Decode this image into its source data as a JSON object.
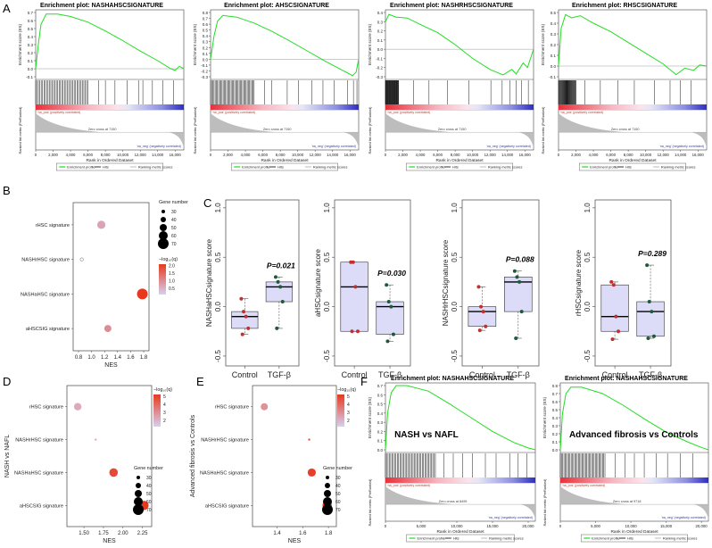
{
  "colors": {
    "gsea_line": "#22dd22",
    "hits": "#000000",
    "ranked_fill": "#bdbdbd",
    "rank_hi": "#e8313a",
    "rank_lo": "#3838c8",
    "dot_hi": "#e8391f",
    "dot_lo": "#d6d0f2",
    "box_fill": "#dcdcf8",
    "control_dot": "#c03030",
    "tgf_dot": "#1e5a3a"
  },
  "panel_letters": [
    "A",
    "B",
    "C",
    "D",
    "E",
    "F"
  ],
  "gsea_common": {
    "y_label_top": "Enrichment score (ES)",
    "y_label_bottom": "Ranked list metric (PreRanked)",
    "x_label": "Rank in Ordered Dataset",
    "pos_label": "'na_pos' (positively correlated)",
    "neg_label": "'na_neg' (negatively correlated)",
    "legend": [
      "Enrichment profile",
      "Hits",
      "Ranking metric scores"
    ]
  },
  "chart_data": [
    {
      "panel": "A1",
      "type": "line",
      "title": "Enrichment plot: NASHAHSCSIGNATURE",
      "x_ticks": [
        "0",
        "2,000",
        "4,000",
        "6,000",
        "8,000",
        "10,000",
        "12,000",
        "14,000",
        "16,000"
      ],
      "x_max": 17000,
      "ylim": [
        -0.1,
        0.7
      ],
      "y_ticks": [
        "0.7",
        "0.6",
        "0.5",
        "0.4",
        "0.3",
        "0.2",
        "0.1",
        "0.0",
        "-0.1"
      ],
      "zero_cross": "Zero cross at 7150",
      "es_curve": [
        [
          0,
          0
        ],
        [
          300,
          0.3
        ],
        [
          600,
          0.55
        ],
        [
          1200,
          0.68
        ],
        [
          2500,
          0.68
        ],
        [
          4000,
          0.65
        ],
        [
          6000,
          0.58
        ],
        [
          8000,
          0.47
        ],
        [
          10000,
          0.35
        ],
        [
          12000,
          0.22
        ],
        [
          14000,
          0.1
        ],
        [
          15500,
          0.0
        ],
        [
          16000,
          -0.02
        ],
        [
          16500,
          0.03
        ],
        [
          17000,
          0.0
        ]
      ],
      "hits_dense": [
        0,
        6000
      ],
      "hits_sparse": [
        7200,
        8000,
        9100,
        10500,
        11800,
        12300,
        13400,
        14600,
        15800
      ]
    },
    {
      "panel": "A2",
      "type": "line",
      "title": "Enrichment plot: AHSCSIGNATURE",
      "x_ticks": [
        "0",
        "2,000",
        "4,000",
        "6,000",
        "8,000",
        "10,000",
        "12,000",
        "14,000",
        "16,000"
      ],
      "x_max": 17000,
      "ylim": [
        -0.3,
        0.8
      ],
      "y_ticks": [
        "0.8",
        "0.7",
        "0.6",
        "0.5",
        "0.4",
        "0.3",
        "0.2",
        "0.1",
        "0.0",
        "-0.1",
        "-0.2",
        "-0.3"
      ],
      "zero_cross": "Zero cross at 7150",
      "es_curve": [
        [
          0,
          0
        ],
        [
          400,
          0.4
        ],
        [
          800,
          0.65
        ],
        [
          1400,
          0.75
        ],
        [
          3000,
          0.72
        ],
        [
          5000,
          0.62
        ],
        [
          7000,
          0.48
        ],
        [
          9000,
          0.32
        ],
        [
          11000,
          0.15
        ],
        [
          13000,
          -0.02
        ],
        [
          15000,
          -0.18
        ],
        [
          16300,
          -0.28
        ],
        [
          16700,
          -0.22
        ],
        [
          17000,
          0.0
        ]
      ],
      "hits_dense": [
        0,
        5000
      ],
      "hits_sparse": [
        6200,
        7000,
        8800,
        10100,
        11600,
        12900,
        14200,
        15700,
        16400,
        16800
      ]
    },
    {
      "panel": "A3",
      "type": "line",
      "title": "Enrichment plot: NASHRHSCSIGNATURE",
      "x_ticks": [
        "0",
        "2,000",
        "4,000",
        "6,000",
        "8,000",
        "10,000",
        "12,000",
        "14,000",
        "16,000"
      ],
      "x_max": 17000,
      "ylim": [
        -0.3,
        0.4
      ],
      "y_ticks": [
        "0.4",
        "0.3",
        "0.2",
        "0.1",
        "0.0",
        "-0.1",
        "-0.2",
        "-0.3"
      ],
      "zero_cross": "Zero cross at 7150",
      "es_curve": [
        [
          0,
          0.3
        ],
        [
          400,
          0.38
        ],
        [
          1200,
          0.35
        ],
        [
          2500,
          0.34
        ],
        [
          4000,
          0.27
        ],
        [
          6000,
          0.18
        ],
        [
          8000,
          0.05
        ],
        [
          10000,
          -0.1
        ],
        [
          12000,
          -0.22
        ],
        [
          13500,
          -0.28
        ],
        [
          14500,
          -0.22
        ],
        [
          15000,
          -0.27
        ],
        [
          15800,
          -0.15
        ],
        [
          16300,
          -0.2
        ],
        [
          17000,
          0.0
        ]
      ],
      "hits_dense": [
        0,
        1500
      ],
      "hits_sparse": [
        3200,
        5000,
        7100,
        9600,
        12100,
        13400,
        14300,
        15000,
        15600,
        16400
      ]
    },
    {
      "panel": "A4",
      "type": "line",
      "title": "Enrichment plot: RHSCSIGNATURE",
      "x_ticks": [
        "0",
        "2,000",
        "4,000",
        "6,000",
        "8,000",
        "10,000",
        "12,000",
        "14,000",
        "16,000"
      ],
      "x_max": 17000,
      "ylim": [
        -0.1,
        0.5
      ],
      "y_ticks": [
        "0.5",
        "0.4",
        "0.3",
        "0.2",
        "0.1",
        "0.0",
        "-0.1"
      ],
      "zero_cross": "Zero cross at 7150",
      "es_curve": [
        [
          0,
          0.0
        ],
        [
          300,
          0.35
        ],
        [
          800,
          0.48
        ],
        [
          1500,
          0.45
        ],
        [
          2500,
          0.47
        ],
        [
          4000,
          0.4
        ],
        [
          6000,
          0.32
        ],
        [
          8000,
          0.22
        ],
        [
          10000,
          0.12
        ],
        [
          12000,
          0.02
        ],
        [
          13500,
          -0.08
        ],
        [
          14500,
          -0.02
        ],
        [
          15500,
          -0.04
        ],
        [
          16200,
          0.01
        ],
        [
          17000,
          0.0
        ]
      ],
      "hits_dense": [
        0,
        2000
      ],
      "hits_sparse": [
        3000,
        4800,
        6800,
        8700,
        11000,
        12800,
        14000,
        15200
      ]
    },
    {
      "panel": "B",
      "type": "scatter",
      "xlabel": "NES",
      "xlim": [
        0.8,
        1.8
      ],
      "x_ticks": [
        "0.8",
        "1.0",
        "1.2",
        "1.4",
        "1.6",
        "1.8"
      ],
      "categories": [
        "rHSC signature",
        "NASHrHSC signature",
        "NASHaHSC signature",
        "aHSCSIG signature"
      ],
      "nes": [
        1.15,
        0.85,
        1.78,
        1.25
      ],
      "size": [
        56,
        28,
        70,
        50
      ],
      "neglog10q": [
        0.6,
        0.1,
        2.0,
        0.9
      ],
      "size_legend_title": "Gene number",
      "size_legend": [
        "30",
        "40",
        "50",
        "60",
        "70"
      ],
      "color_legend_title": "−log₁₀(q)",
      "color_legend": [
        "2.0",
        "1.5",
        "1.0",
        "0.5"
      ]
    },
    {
      "panel": "C",
      "type": "box",
      "xlabel_groups": [
        "Control",
        "TGF-β"
      ],
      "plots": [
        {
          "ylabel": "NASHaHSCsignature score",
          "ylim": [
            -0.5,
            1.0
          ],
          "p": "P=0.021",
          "control": [
            0.08,
            -0.05,
            -0.1,
            -0.22,
            -0.28
          ],
          "tgf": [
            0.3,
            0.25,
            0.2,
            0.05,
            -0.22
          ]
        },
        {
          "ylabel": "aHSCsignature score",
          "ylim": [
            -0.5,
            1.0
          ],
          "p": "P=0.030",
          "control": [
            0.45,
            0.45,
            0.2,
            -0.25,
            -0.25
          ],
          "tgf": [
            0.22,
            0.05,
            0.0,
            -0.28,
            -0.35
          ]
        },
        {
          "ylabel": "NASHrHSCsignature score",
          "ylim": [
            -0.5,
            1.0
          ],
          "p": "P=0.088",
          "control": [
            0.2,
            0.0,
            -0.05,
            -0.2,
            -0.24
          ],
          "tgf": [
            0.36,
            0.3,
            0.25,
            -0.05,
            -0.32
          ]
        },
        {
          "ylabel": "rHSCsignature score",
          "ylim": [
            -0.5,
            1.0
          ],
          "p": "P=0.289",
          "control": [
            0.25,
            0.22,
            -0.1,
            -0.25,
            -0.33
          ],
          "tgf": [
            0.42,
            0.05,
            -0.05,
            -0.3,
            -0.32
          ]
        }
      ],
      "y_ticks": [
        "1.0",
        "0.5",
        "0.0",
        "-0.5"
      ]
    },
    {
      "panel": "D",
      "type": "scatter",
      "ylabel_side": "NASH vs NAFL",
      "xlabel": "NES",
      "xlim": [
        1.35,
        2.3
      ],
      "x_ticks": [
        "1.50",
        "1.75",
        "2.00",
        "2.25"
      ],
      "categories": [
        "rHSC signature",
        "NASHrHSC signature",
        "NASHaHSC signature",
        "aHSCSIG signature"
      ],
      "nes": [
        1.42,
        1.65,
        1.88,
        2.27
      ],
      "size": [
        52,
        22,
        58,
        62
      ],
      "neglog10q": [
        1.2,
        1.2,
        4.3,
        4.8
      ],
      "size_legend_title": "Gene number",
      "size_legend": [
        "30",
        "40",
        "50",
        "60",
        "70"
      ],
      "color_legend_title": "−log₁₀(q)",
      "color_legend": [
        "5",
        "4",
        "3",
        "2"
      ]
    },
    {
      "panel": "E",
      "type": "scatter",
      "ylabel_side": "Advanced fibrosis vs Controls",
      "xlabel": "NES",
      "xlim": [
        1.25,
        1.82
      ],
      "x_ticks": [
        "1.4",
        "1.6",
        "1.8"
      ],
      "categories": [
        "rHSC signature",
        "NASHrHSC signature",
        "NASHaHSC signature",
        "aHSCSIG signature"
      ],
      "nes": [
        1.3,
        1.65,
        1.67,
        1.79
      ],
      "size": [
        50,
        20,
        56,
        62
      ],
      "neglog10q": [
        2.0,
        4.0,
        4.6,
        4.8
      ],
      "size_legend_title": "Gene number",
      "size_legend": [
        "30",
        "40",
        "50",
        "60",
        "70"
      ],
      "color_legend_title": "−log₁₀(q)",
      "color_legend": [
        "5",
        "4",
        "3",
        "2"
      ]
    },
    {
      "panel": "F1",
      "type": "line",
      "title": "Enrichment plot: NASHAHSCSIGNATURE",
      "inset_label": "NASH vs NAFL",
      "x_ticks": [
        "0",
        "5,000",
        "10,000",
        "15,000",
        "20,000"
      ],
      "x_max": 21000,
      "ylim": [
        0.0,
        0.7
      ],
      "y_ticks": [
        "0.7",
        "0.6",
        "0.5",
        "0.4",
        "0.3",
        "0.2",
        "0.1",
        "0.0"
      ],
      "zero_cross": "Zero cross at 8499",
      "es_curve": [
        [
          0,
          0
        ],
        [
          300,
          0.4
        ],
        [
          800,
          0.62
        ],
        [
          1500,
          0.7
        ],
        [
          3000,
          0.7
        ],
        [
          6000,
          0.64
        ],
        [
          9000,
          0.5
        ],
        [
          12000,
          0.35
        ],
        [
          15000,
          0.2
        ],
        [
          18000,
          0.08
        ],
        [
          20000,
          0.02
        ],
        [
          21000,
          0.0
        ]
      ],
      "hits_dense": [
        0,
        7000
      ],
      "hits_sparse": [
        8200,
        9500,
        10800,
        12200,
        14000,
        15500,
        17400,
        18600,
        19800
      ]
    },
    {
      "panel": "F2",
      "type": "line",
      "title": "Enrichment plot: NASHAHSCSIGNATURE",
      "inset_label": "Advanced fibrosis vs Controls",
      "x_ticks": [
        "0",
        "5,000",
        "10,000",
        "15,000",
        "20,000"
      ],
      "x_max": 21000,
      "ylim": [
        0.0,
        0.8
      ],
      "y_ticks": [
        "0.8",
        "0.7",
        "0.6",
        "0.5",
        "0.4",
        "0.3",
        "0.2",
        "0.1",
        "0.0"
      ],
      "zero_cross": "Zero cross at 9718",
      "es_curve": [
        [
          0,
          0
        ],
        [
          300,
          0.45
        ],
        [
          800,
          0.7
        ],
        [
          1500,
          0.78
        ],
        [
          3000,
          0.78
        ],
        [
          6000,
          0.7
        ],
        [
          9000,
          0.55
        ],
        [
          12000,
          0.38
        ],
        [
          15000,
          0.22
        ],
        [
          18000,
          0.1
        ],
        [
          20000,
          0.03
        ],
        [
          21000,
          0.0
        ]
      ],
      "hits_dense": [
        0,
        6500
      ],
      "hits_sparse": [
        7800,
        9200,
        10500,
        11900,
        13600,
        15200,
        17000,
        18800
      ]
    }
  ]
}
